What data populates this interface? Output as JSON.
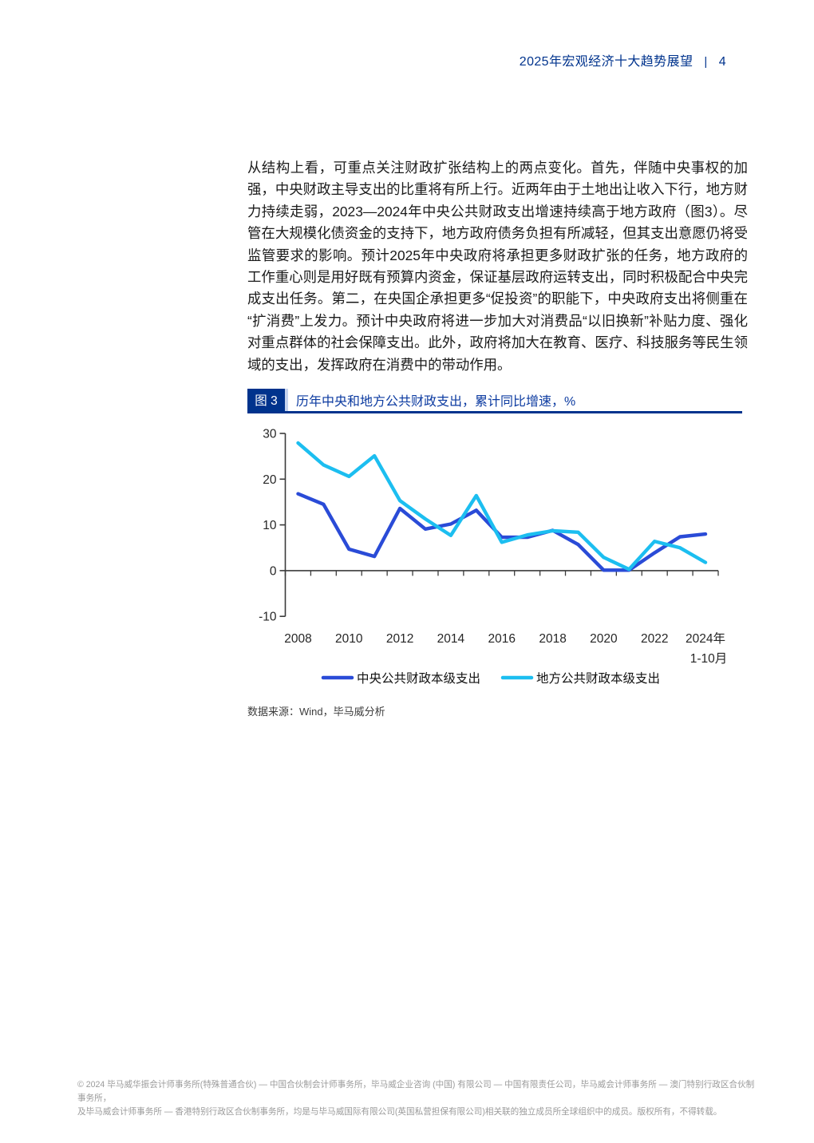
{
  "header": {
    "title": "2025年宏观经济十大趋势展望",
    "divider": "|",
    "page_number": "4"
  },
  "paragraph": "从结构上看，可重点关注财政扩张结构上的两点变化。首先，伴随中央事权的加强，中央财政主导支出的比重将有所上行。近两年由于土地出让收入下行，地方财力持续走弱，2023—2024年中央公共财政支出增速持续高于地方政府（图3）。尽管在大规模化债资金的支持下，地方政府债务负担有所减轻，但其支出意愿仍将受监管要求的影响。预计2025年中央政府将承担更多财政扩张的任务，地方政府的工作重心则是用好既有预算内资金，保证基层政府运转支出，同时积极配合中央完成支出任务。第二，在央国企承担更多“促投资”的职能下，中央政府支出将侧重在“扩消费”上发力。预计中央政府将进一步加大对消费品“以旧换新”补贴力度、强化对重点群体的社会保障支出。此外，政府将加大在教育、医疗、科技服务等民生领域的支出，发挥政府在消费中的带动作用。",
  "figure": {
    "label": "图 3",
    "title": "历年中央和地方公共财政支出，累计同比增速，%",
    "source": "数据来源：Wind，毕马威分析"
  },
  "footer": {
    "line1": "© 2024 毕马威华振会计师事务所(特殊普通合伙) — 中国合伙制会计师事务所，毕马威企业咨询 (中国) 有限公司 — 中国有限责任公司，毕马威会计师事务所 — 澳门特别行政区合伙制事务所，",
    "line2": "及毕马威会计师事务所 — 香港特别行政区合伙制事务所，均是与毕马威国际有限公司(英国私营担保有限公司)相关联的独立成员所全球组织中的成员。版权所有，不得转载。"
  },
  "colors": {
    "brand_navy": "#00338D",
    "title_blue": "#0B3AA0",
    "axis": "#3b3b3b",
    "footer_gray": "#9b9b9b"
  },
  "chart_data": {
    "type": "line",
    "title": "历年中央和地方公共财政支出，累计同比增速，%",
    "x": [
      "2008",
      "2009",
      "2010",
      "2011",
      "2012",
      "2013",
      "2014",
      "2015",
      "2016",
      "2017",
      "2018",
      "2019",
      "2020",
      "2021",
      "2022",
      "2023",
      "2024年1-10月"
    ],
    "x_tick_labels": [
      "2008",
      "2010",
      "2012",
      "2014",
      "2016",
      "2018",
      "2020",
      "2022",
      "2024年"
    ],
    "x_last_tick_sub": "1-10月",
    "y_ticks": [
      30,
      20,
      10,
      0,
      -10
    ],
    "ylim": [
      -10,
      30
    ],
    "grid": false,
    "legend_position": "bottom",
    "series": [
      {
        "name": "中央公共财政本级支出",
        "color": "#2A4BD7",
        "values": [
          16.8,
          14.5,
          4.7,
          3.1,
          13.6,
          9.1,
          10.2,
          13.2,
          7.3,
          7.3,
          8.8,
          5.7,
          0.1,
          0.1,
          3.9,
          7.4,
          8.0
        ]
      },
      {
        "name": "地方公共财政本级支出",
        "color": "#1CBEF0",
        "values": [
          27.9,
          23.1,
          20.6,
          25.1,
          15.3,
          11.3,
          7.7,
          16.4,
          6.2,
          7.8,
          8.7,
          8.4,
          2.9,
          0.3,
          6.4,
          5.0,
          1.8
        ]
      }
    ]
  }
}
